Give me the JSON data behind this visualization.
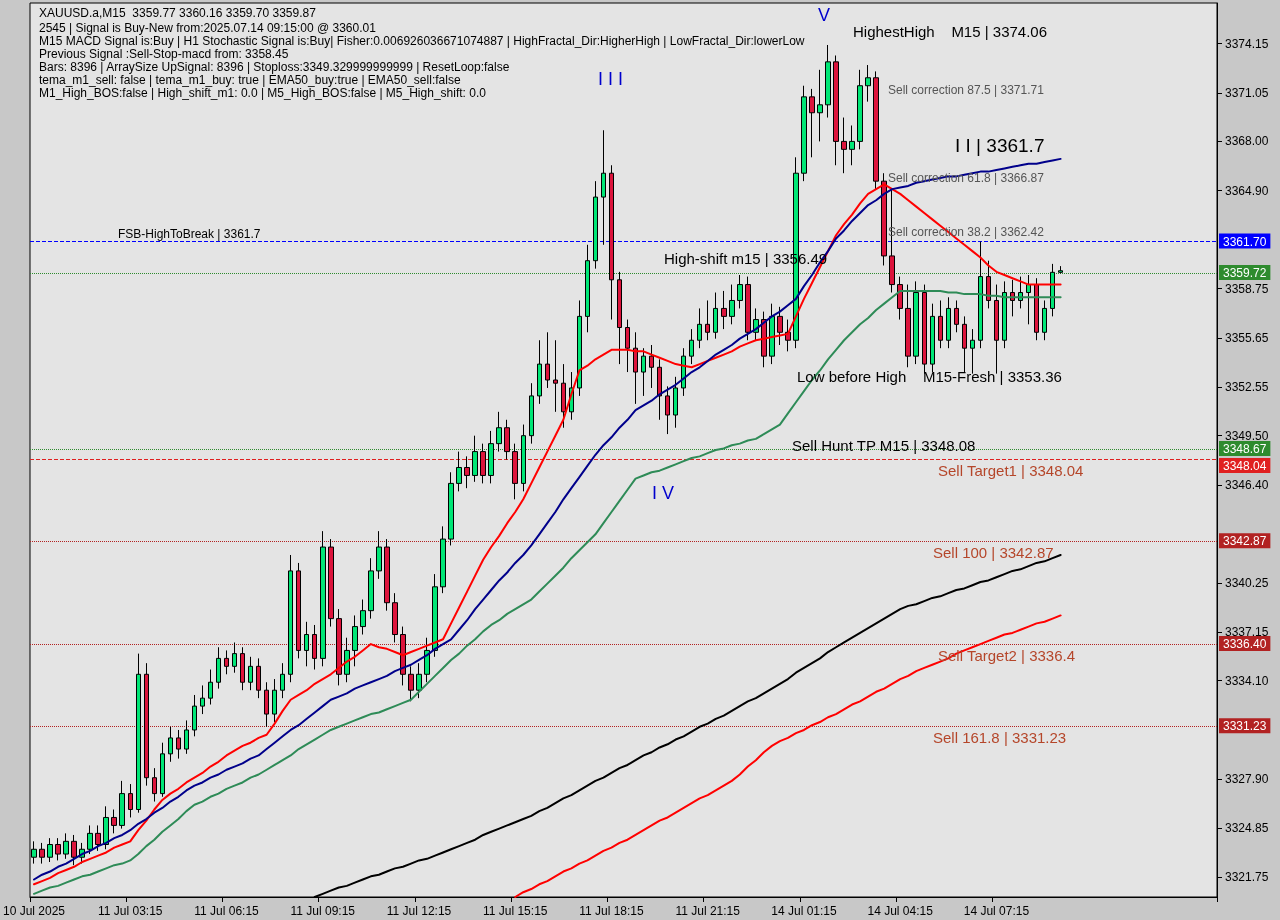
{
  "chart_data": {
    "type": "candlestick",
    "title": "XAUUSD.a,M15  3359.77 3360.16 3359.70 3359.87",
    "subtitle": "2545 | Signal is Buy-New from:2025.07.14 09:15:00 @ 3360.01\nM15 MACD Signal is:Buy | H1 Stochastic Signal is:Buy| Fisher:0.006926036671074887 | HighFractal_Dir:HigherHigh | LowFractal_Dir:lowerLow\nPrevious Signal :Sell-Stop-macd from: 3358.45\nBars: 8396 | ArraySize UpSignal: 8396 | Stoploss:3349.329999999999 | ResetLoop:false\ntema_m1_sell: false | tema_m1_buy: true | EMA50_buy:true | EMA50_sell:false\nM1_High_BOS:false | High_shift_m1: 0.0 | M5_High_BOS:false | M5_High_shift: 0.0",
    "categories": [
      "10 Jul 2025",
      null,
      null,
      null,
      null,
      null,
      null,
      null,
      null,
      null,
      null,
      null,
      "11 Jul 03:15",
      null,
      null,
      null,
      null,
      null,
      null,
      null,
      null,
      null,
      null,
      null,
      "11 Jul 06:15",
      null,
      null,
      null,
      null,
      null,
      null,
      null,
      null,
      null,
      null,
      null,
      "11 Jul 09:15",
      null,
      null,
      null,
      null,
      null,
      null,
      null,
      null,
      null,
      null,
      null,
      "11 Jul 12:15",
      null,
      null,
      null,
      null,
      null,
      null,
      null,
      null,
      null,
      null,
      null,
      "11 Jul 15:15",
      null,
      null,
      null,
      null,
      null,
      null,
      null,
      null,
      null,
      null,
      null,
      "11 Jul 18:15",
      null,
      null,
      null,
      null,
      null,
      null,
      null,
      null,
      null,
      null,
      null,
      "11 Jul 21:15",
      null,
      null,
      null,
      null,
      null,
      null,
      null,
      null,
      null,
      null,
      null,
      "14 Jul 01:15",
      null,
      null,
      null,
      null,
      null,
      null,
      null,
      null,
      null,
      null,
      null,
      "14 Jul 04:15",
      null,
      null,
      null,
      null,
      null,
      null,
      null,
      null,
      null,
      null,
      null,
      "14 Jul 07:15",
      null,
      null,
      null,
      null,
      null,
      null,
      null,
      null
    ],
    "ohlc": [
      [
        3323.0,
        3324.0,
        3322.6,
        3323.5
      ],
      [
        3323.5,
        3323.9,
        3322.6,
        3323.0
      ],
      [
        3323.0,
        3324.2,
        3322.7,
        3323.8
      ],
      [
        3323.8,
        3324.2,
        3322.8,
        3323.2
      ],
      [
        3323.2,
        3324.5,
        3322.9,
        3324.0
      ],
      [
        3324.0,
        3324.4,
        3322.5,
        3323.0
      ],
      [
        3323.0,
        3323.9,
        3322.6,
        3323.5
      ],
      [
        3323.5,
        3325.0,
        3323.2,
        3324.5
      ],
      [
        3324.5,
        3325.0,
        3323.4,
        3323.8
      ],
      [
        3323.8,
        3326.2,
        3323.5,
        3325.5
      ],
      [
        3325.5,
        3326.0,
        3324.5,
        3325.0
      ],
      [
        3325.0,
        3327.8,
        3324.8,
        3327.0
      ],
      [
        3327.0,
        3327.6,
        3325.5,
        3326.0
      ],
      [
        3326.0,
        3335.8,
        3325.8,
        3334.5
      ],
      [
        3334.5,
        3335.2,
        3327.5,
        3328.0
      ],
      [
        3328.0,
        3328.6,
        3326.5,
        3327.0
      ],
      [
        3327.0,
        3330.2,
        3326.8,
        3329.5
      ],
      [
        3329.5,
        3331.2,
        3329.0,
        3330.5
      ],
      [
        3330.5,
        3331.0,
        3329.2,
        3329.8
      ],
      [
        3329.8,
        3331.6,
        3329.5,
        3331.0
      ],
      [
        3331.0,
        3333.2,
        3330.6,
        3332.5
      ],
      [
        3332.5,
        3333.8,
        3332.0,
        3333.0
      ],
      [
        3333.0,
        3334.8,
        3332.6,
        3334.0
      ],
      [
        3334.0,
        3336.2,
        3333.6,
        3335.5
      ],
      [
        3335.5,
        3336.0,
        3334.5,
        3335.0
      ],
      [
        3335.0,
        3336.5,
        3334.6,
        3335.8
      ],
      [
        3335.8,
        3336.2,
        3333.5,
        3334.0
      ],
      [
        3334.0,
        3335.6,
        3333.5,
        3335.0
      ],
      [
        3335.0,
        3335.5,
        3333.0,
        3333.5
      ],
      [
        3333.5,
        3334.0,
        3331.2,
        3332.0
      ],
      [
        3332.0,
        3334.2,
        3331.5,
        3333.5
      ],
      [
        3333.5,
        3335.2,
        3333.0,
        3334.5
      ],
      [
        3334.5,
        3342.0,
        3334.0,
        3341.0
      ],
      [
        3341.0,
        3341.5,
        3335.5,
        3336.0
      ],
      [
        3336.0,
        3337.8,
        3335.0,
        3337.0
      ],
      [
        3337.0,
        3337.6,
        3334.8,
        3335.5
      ],
      [
        3335.5,
        3343.5,
        3335.0,
        3342.5
      ],
      [
        3342.5,
        3343.0,
        3337.5,
        3338.0
      ],
      [
        3338.0,
        3338.6,
        3333.8,
        3334.5
      ],
      [
        3334.5,
        3336.8,
        3334.0,
        3336.0
      ],
      [
        3336.0,
        3338.2,
        3335.0,
        3337.5
      ],
      [
        3337.5,
        3339.2,
        3337.0,
        3338.5
      ],
      [
        3338.5,
        3341.8,
        3338.0,
        3341.0
      ],
      [
        3341.0,
        3343.5,
        3340.5,
        3342.5
      ],
      [
        3342.5,
        3343.0,
        3338.5,
        3339.0
      ],
      [
        3339.0,
        3339.6,
        3336.5,
        3337.0
      ],
      [
        3337.0,
        3337.5,
        3333.8,
        3334.5
      ],
      [
        3334.5,
        3335.0,
        3332.8,
        3333.5
      ],
      [
        3333.5,
        3335.2,
        3333.0,
        3334.5
      ],
      [
        3334.5,
        3336.8,
        3334.0,
        3336.0
      ],
      [
        3336.0,
        3340.8,
        3335.6,
        3340.0
      ],
      [
        3340.0,
        3343.8,
        3339.6,
        3343.0
      ],
      [
        3343.0,
        3347.2,
        3342.6,
        3346.5
      ],
      [
        3346.5,
        3348.5,
        3346.0,
        3347.5
      ],
      [
        3347.5,
        3348.2,
        3346.2,
        3347.0
      ],
      [
        3347.0,
        3349.5,
        3346.6,
        3348.5
      ],
      [
        3348.5,
        3349.0,
        3346.5,
        3347.0
      ],
      [
        3347.0,
        3349.8,
        3346.5,
        3349.0
      ],
      [
        3349.0,
        3351.0,
        3348.5,
        3350.0
      ],
      [
        3350.0,
        3350.5,
        3348.0,
        3348.5
      ],
      [
        3348.5,
        3349.0,
        3345.5,
        3346.5
      ],
      [
        3346.5,
        3350.2,
        3346.0,
        3349.5
      ],
      [
        3349.5,
        3352.8,
        3349.0,
        3352.0
      ],
      [
        3352.0,
        3355.5,
        3351.5,
        3354.0
      ],
      [
        3354.0,
        3356.0,
        3352.5,
        3353.0
      ],
      [
        3353.0,
        3355.5,
        3351.0,
        3352.8
      ],
      [
        3352.8,
        3354.0,
        3350.0,
        3351.0
      ],
      [
        3351.0,
        3353.5,
        3350.5,
        3352.5
      ],
      [
        3352.5,
        3358.0,
        3352.0,
        3357.0
      ],
      [
        3357.0,
        3361.5,
        3356.0,
        3360.5
      ],
      [
        3360.5,
        3365.5,
        3360.0,
        3364.5
      ],
      [
        3364.5,
        3368.7,
        3361.5,
        3366.0
      ],
      [
        3366.0,
        3366.5,
        3356.8,
        3359.3
      ],
      [
        3359.3,
        3359.8,
        3354.0,
        3356.3
      ],
      [
        3356.3,
        3356.8,
        3353.5,
        3355.0
      ],
      [
        3355.0,
        3356.0,
        3351.5,
        3353.5
      ],
      [
        3353.5,
        3355.0,
        3352.0,
        3354.5
      ],
      [
        3354.5,
        3355.2,
        3352.5,
        3353.8
      ],
      [
        3353.8,
        3354.3,
        3350.5,
        3352.0
      ],
      [
        3352.0,
        3352.6,
        3349.6,
        3350.8
      ],
      [
        3350.8,
        3353.2,
        3350.0,
        3352.5
      ],
      [
        3352.5,
        3355.0,
        3352.0,
        3354.5
      ],
      [
        3354.5,
        3356.2,
        3354.0,
        3355.5
      ],
      [
        3355.5,
        3357.5,
        3355.0,
        3356.5
      ],
      [
        3356.5,
        3358.0,
        3355.5,
        3356.0
      ],
      [
        3356.0,
        3358.5,
        3355.6,
        3357.5
      ],
      [
        3357.5,
        3358.6,
        3356.2,
        3357.0
      ],
      [
        3357.0,
        3359.0,
        3356.5,
        3358.0
      ],
      [
        3358.0,
        3359.6,
        3357.5,
        3359.0
      ],
      [
        3359.0,
        3359.5,
        3355.5,
        3356.0
      ],
      [
        3356.0,
        3357.5,
        3355.5,
        3356.8
      ],
      [
        3356.8,
        3357.3,
        3353.8,
        3354.5
      ],
      [
        3354.5,
        3357.8,
        3354.0,
        3357.0
      ],
      [
        3357.0,
        3357.6,
        3355.2,
        3356.0
      ],
      [
        3356.0,
        3356.8,
        3354.8,
        3355.5
      ],
      [
        3355.5,
        3367.0,
        3355.0,
        3366.0
      ],
      [
        3366.0,
        3371.5,
        3365.5,
        3370.8
      ],
      [
        3370.8,
        3371.3,
        3367.0,
        3369.8
      ],
      [
        3369.8,
        3372.5,
        3368.0,
        3370.3
      ],
      [
        3370.3,
        3374.06,
        3369.5,
        3373.0
      ],
      [
        3373.0,
        3373.4,
        3366.5,
        3368.0
      ],
      [
        3368.0,
        3369.5,
        3366.0,
        3367.5
      ],
      [
        3367.5,
        3369.0,
        3366.5,
        3368.0
      ],
      [
        3368.0,
        3372.5,
        3367.5,
        3371.5
      ],
      [
        3371.5,
        3372.8,
        3370.5,
        3372.0
      ],
      [
        3372.0,
        3372.4,
        3365.0,
        3365.5
      ],
      [
        3365.5,
        3366.0,
        3360.2,
        3360.8
      ],
      [
        3360.8,
        3365.0,
        3358.5,
        3359.0
      ],
      [
        3359.0,
        3359.5,
        3356.8,
        3357.5
      ],
      [
        3357.5,
        3359.0,
        3353.8,
        3354.5
      ],
      [
        3354.5,
        3359.2,
        3354.0,
        3358.5
      ],
      [
        3358.5,
        3359.0,
        3353.4,
        3354.0
      ],
      [
        3354.0,
        3357.8,
        3353.5,
        3357.0
      ],
      [
        3357.0,
        3358.0,
        3355.0,
        3355.5
      ],
      [
        3355.5,
        3358.2,
        3355.0,
        3357.5
      ],
      [
        3357.5,
        3358.0,
        3356.0,
        3356.5
      ],
      [
        3356.5,
        3357.0,
        3353.5,
        3355.0
      ],
      [
        3355.0,
        3356.2,
        3353.4,
        3355.5
      ],
      [
        3355.5,
        3361.7,
        3355.0,
        3359.5
      ],
      [
        3359.5,
        3360.5,
        3357.5,
        3358.0
      ],
      [
        3358.0,
        3359.0,
        3353.4,
        3355.5
      ],
      [
        3355.5,
        3359.2,
        3355.0,
        3358.5
      ],
      [
        3358.5,
        3359.3,
        3357.0,
        3358.0
      ],
      [
        3358.0,
        3359.5,
        3357.5,
        3358.5
      ],
      [
        3358.5,
        3359.6,
        3356.5,
        3359.0
      ],
      [
        3359.0,
        3359.4,
        3355.5,
        3356.0
      ],
      [
        3356.0,
        3358.0,
        3355.5,
        3357.5
      ],
      [
        3357.5,
        3360.3,
        3357.0,
        3359.77
      ],
      [
        3359.77,
        3360.16,
        3359.7,
        3359.87
      ]
    ],
    "series": [
      {
        "type": "line",
        "color": "#ff0000",
        "values": [
          3321.3,
          3321.5,
          3321.7,
          3322.0,
          3322.2,
          3322.4,
          3322.7,
          3322.9,
          3323.1,
          3323.3,
          3323.6,
          3323.8,
          3324.0,
          3324.7,
          3325.3,
          3326.0,
          3326.6,
          3327.0,
          3327.3,
          3327.7,
          3328.0,
          3328.3,
          3328.7,
          3329.0,
          3329.4,
          3329.7,
          3330.0,
          3330.2,
          3330.5,
          3330.7,
          3331.4,
          3332.2,
          3332.9,
          3333.2,
          3333.5,
          3333.9,
          3334.2,
          3334.5,
          3334.9,
          3335.3,
          3335.6,
          3336.0,
          3336.4,
          3336.2,
          3336.1,
          3335.9,
          3335.7,
          3335.9,
          3336.1,
          3336.3,
          3336.5,
          3336.7,
          3337.7,
          3338.7,
          3339.7,
          3340.7,
          3341.7,
          3342.5,
          3343.2,
          3344.0,
          3344.7,
          3345.5,
          3346.5,
          3347.5,
          3348.5,
          3349.5,
          3350.5,
          3352.1,
          3353.6,
          3353.9,
          3354.3,
          3354.6,
          3354.9,
          3354.9,
          3354.9,
          3354.8,
          3354.8,
          3354.6,
          3354.4,
          3354.2,
          3354.0,
          3353.9,
          3353.8,
          3354.0,
          3354.2,
          3354.4,
          3354.6,
          3354.8,
          3355.1,
          3355.3,
          3355.5,
          3355.6,
          3355.7,
          3355.8,
          3355.9,
          3357.0,
          3358.1,
          3359.1,
          3360.1,
          3361.1,
          3362.1,
          3362.8,
          3363.4,
          3364.1,
          3364.7,
          3365.0,
          3365.3,
          3365.0,
          3364.7,
          3364.3,
          3363.9,
          3363.5,
          3363.1,
          3362.7,
          3362.3,
          3361.9,
          3361.5,
          3361.1,
          3360.7,
          3360.2,
          3359.8,
          3359.6,
          3359.4,
          3359.2,
          3359.0,
          3359.0,
          3359.0,
          3359.0,
          3359.0
        ]
      },
      {
        "type": "line",
        "color": "#00008b",
        "values": [
          3321.6,
          3321.9,
          3322.1,
          3322.4,
          3322.6,
          3322.9,
          3323.2,
          3323.4,
          3323.7,
          3323.9,
          3324.2,
          3324.4,
          3324.7,
          3325.1,
          3325.4,
          3325.8,
          3326.1,
          3326.5,
          3326.8,
          3327.2,
          3327.5,
          3327.7,
          3328.0,
          3328.2,
          3328.5,
          3328.7,
          3328.9,
          3329.2,
          3329.4,
          3329.8,
          3330.2,
          3330.6,
          3331.0,
          3331.3,
          3331.7,
          3332.1,
          3332.5,
          3332.9,
          3333.1,
          3333.3,
          3333.6,
          3333.8,
          3334.0,
          3334.2,
          3334.4,
          3334.7,
          3334.9,
          3335.1,
          3335.4,
          3335.7,
          3336.1,
          3336.4,
          3336.7,
          3337.3,
          3337.9,
          3338.6,
          3339.2,
          3339.8,
          3340.4,
          3340.9,
          3341.5,
          3342.0,
          3342.6,
          3343.3,
          3344.0,
          3344.7,
          3345.5,
          3346.2,
          3346.9,
          3347.6,
          3348.3,
          3348.9,
          3349.4,
          3350.0,
          3350.5,
          3351.1,
          3351.4,
          3351.7,
          3352.1,
          3352.4,
          3352.7,
          3353.1,
          3353.5,
          3353.8,
          3354.2,
          3354.6,
          3354.9,
          3355.2,
          3355.6,
          3355.9,
          3356.2,
          3356.6,
          3357.0,
          3357.3,
          3357.7,
          3358.1,
          3358.9,
          3359.6,
          3360.4,
          3361.1,
          3361.9,
          3362.4,
          3363.0,
          3363.5,
          3364.0,
          3364.3,
          3364.7,
          3365.0,
          3365.1,
          3365.2,
          3365.4,
          3365.5,
          3365.6,
          3365.7,
          3365.8,
          3365.8,
          3365.9,
          3366.0,
          3366.1,
          3366.1,
          3366.2,
          3366.3,
          3366.4,
          3366.5,
          3366.6,
          3366.6,
          3366.7,
          3366.8,
          3366.9
        ]
      },
      {
        "type": "line",
        "color": "#2e8b57",
        "values": [
          3320.7,
          3320.9,
          3321.1,
          3321.2,
          3321.4,
          3321.6,
          3321.8,
          3321.9,
          3322.1,
          3322.3,
          3322.5,
          3322.6,
          3322.8,
          3323.2,
          3323.7,
          3324.1,
          3324.6,
          3325.0,
          3325.4,
          3325.9,
          3326.3,
          3326.5,
          3326.8,
          3327.0,
          3327.3,
          3327.5,
          3327.7,
          3328.0,
          3328.2,
          3328.5,
          3328.8,
          3329.1,
          3329.4,
          3329.8,
          3330.1,
          3330.4,
          3330.7,
          3331.0,
          3331.2,
          3331.4,
          3331.6,
          3331.8,
          3332.0,
          3332.1,
          3332.3,
          3332.5,
          3332.7,
          3332.9,
          3333.4,
          3333.9,
          3334.4,
          3334.9,
          3335.4,
          3335.8,
          3336.3,
          3336.7,
          3337.2,
          3337.6,
          3337.9,
          3338.3,
          3338.6,
          3338.9,
          3339.2,
          3339.7,
          3340.2,
          3340.7,
          3341.2,
          3341.8,
          3342.3,
          3342.8,
          3343.3,
          3344.0,
          3344.7,
          3345.4,
          3346.1,
          3346.8,
          3347.0,
          3347.2,
          3347.3,
          3347.5,
          3347.7,
          3347.9,
          3348.1,
          3348.2,
          3348.4,
          3348.6,
          3348.7,
          3348.9,
          3349.0,
          3349.2,
          3349.3,
          3349.6,
          3349.9,
          3350.2,
          3350.9,
          3351.6,
          3352.3,
          3353.0,
          3353.6,
          3354.3,
          3354.9,
          3355.5,
          3356.0,
          3356.5,
          3356.9,
          3357.4,
          3357.8,
          3358.2,
          3358.6,
          3358.6,
          3358.6,
          3358.6,
          3358.6,
          3358.6,
          3358.5,
          3358.5,
          3358.4,
          3358.4,
          3358.4,
          3358.3,
          3358.3,
          3358.2,
          3358.2,
          3358.2,
          3358.2,
          3358.2,
          3358.2,
          3358.2,
          3358.2
        ]
      },
      {
        "type": "line",
        "color": "#000000",
        "values": [
          null,
          null,
          null,
          null,
          null,
          null,
          null,
          null,
          null,
          null,
          null,
          null,
          null,
          null,
          null,
          null,
          null,
          null,
          null,
          null,
          null,
          null,
          null,
          null,
          null,
          null,
          null,
          null,
          null,
          null,
          null,
          null,
          null,
          null,
          null,
          3320.5,
          3320.7,
          3320.9,
          3321.1,
          3321.2,
          3321.4,
          3321.6,
          3321.8,
          3321.9,
          3322.1,
          3322.3,
          3322.4,
          3322.6,
          3322.8,
          3322.9,
          3323.1,
          3323.3,
          3323.5,
          3323.7,
          3323.9,
          3324.1,
          3324.4,
          3324.6,
          3324.8,
          3325.0,
          3325.2,
          3325.4,
          3325.6,
          3325.9,
          3326.1,
          3326.4,
          3326.7,
          3326.9,
          3327.2,
          3327.5,
          3327.8,
          3328.0,
          3328.3,
          3328.6,
          3328.8,
          3329.1,
          3329.4,
          3329.6,
          3329.9,
          3330.1,
          3330.4,
          3330.6,
          3330.9,
          3331.2,
          3331.4,
          3331.7,
          3331.9,
          3332.2,
          3332.5,
          3332.8,
          3333.0,
          3333.3,
          3333.6,
          3333.9,
          3334.2,
          3334.6,
          3334.9,
          3335.2,
          3335.5,
          3335.9,
          3336.2,
          3336.5,
          3336.8,
          3337.1,
          3337.4,
          3337.7,
          3338.0,
          3338.3,
          3338.6,
          3338.8,
          3338.9,
          3339.1,
          3339.3,
          3339.4,
          3339.6,
          3339.8,
          3339.9,
          3340.1,
          3340.3,
          3340.4,
          3340.6,
          3340.8,
          3341.0,
          3341.1,
          3341.3,
          3341.5,
          3341.6,
          3341.8,
          3342.0
        ]
      },
      {
        "type": "line",
        "color": "#ff0000",
        "values": [
          null,
          null,
          null,
          null,
          null,
          null,
          null,
          null,
          null,
          null,
          null,
          null,
          null,
          null,
          null,
          null,
          null,
          null,
          null,
          null,
          null,
          null,
          null,
          null,
          null,
          null,
          null,
          null,
          null,
          null,
          null,
          null,
          null,
          null,
          null,
          null,
          null,
          null,
          null,
          null,
          null,
          null,
          null,
          null,
          null,
          null,
          null,
          null,
          null,
          null,
          null,
          null,
          null,
          null,
          null,
          null,
          null,
          null,
          null,
          null,
          3320.5,
          3320.8,
          3321.0,
          3321.3,
          3321.5,
          3321.8,
          3322.1,
          3322.3,
          3322.6,
          3322.8,
          3323.1,
          3323.4,
          3323.6,
          3323.9,
          3324.1,
          3324.4,
          3324.7,
          3325.0,
          3325.3,
          3325.5,
          3325.8,
          3326.1,
          3326.4,
          3326.7,
          3326.9,
          3327.2,
          3327.5,
          3327.8,
          3328.2,
          3328.7,
          3329.1,
          3329.6,
          3330.0,
          3330.3,
          3330.5,
          3330.8,
          3331.0,
          3331.3,
          3331.5,
          3331.8,
          3332.0,
          3332.3,
          3332.6,
          3332.8,
          3333.1,
          3333.4,
          3333.6,
          3333.9,
          3334.2,
          3334.4,
          3334.7,
          3334.9,
          3335.1,
          3335.3,
          3335.5,
          3335.8,
          3336.0,
          3336.2,
          3336.4,
          3336.6,
          3336.8,
          3337.0,
          3337.1,
          3337.3,
          3337.5,
          3337.7,
          3337.8,
          3338.0,
          3338.2
        ]
      }
    ],
    "ylim": [
      3320.5,
      3376.7
    ],
    "yticks": [
      3321.75,
      3324.85,
      {
        "value": 3327.9,
        "label": "3327.90"
      },
      {
        "value": 3334.1,
        "label": "3334.10"
      },
      3337.15,
      3340.25,
      {
        "value": 3346.4,
        "label": "3346.40"
      },
      {
        "value": 3349.5,
        "label": "3349.50"
      },
      3352.55,
      3355.65,
      3358.75,
      {
        "value": 3364.9,
        "label": "3364.90"
      },
      {
        "value": 3368,
        "label": "3368.00"
      },
      3371.05,
      3374.15
    ],
    "ref_lines": [
      {
        "axis": "y",
        "value": 3361.7,
        "label": "FSB-HighToBreak | 3361.7",
        "color": "#0000ff",
        "line_style": "dashed"
      },
      {
        "axis": "y",
        "value": 3359.72,
        "color": "#2e8b2e",
        "line_style": "dotted"
      },
      {
        "axis": "y",
        "value": 3348.67,
        "color": "#2e8b2e",
        "line_style": "dotted"
      },
      {
        "axis": "y",
        "value": 3348.04,
        "label": "Sell Target1 | 3348.04",
        "color": "#e02020",
        "line_style": "dashed"
      },
      {
        "axis": "y",
        "value": 3342.87,
        "label": "Sell 100 | 3342.87",
        "color": "#b22222",
        "line_style": "dotted"
      },
      {
        "axis": "y",
        "value": 3336.4,
        "label": "Sell Target2 | 3336.4",
        "color": "#b22222",
        "line_style": "dotted"
      },
      {
        "axis": "y",
        "value": 3331.23,
        "label": "Sell 161.8 | 3331.23",
        "color": "#b22222",
        "line_style": "dotted"
      }
    ],
    "annotations": [
      "I I I",
      "V",
      "HighestHigh    M15 | 3374.06",
      "Sell correction 87.5 | 3371.71",
      "I I | 3361.7",
      "Sell correction 61.8 | 3366.87",
      "Sell correction 38.2 | 3362.42",
      "High-shift m15 | 3356.49",
      "Low before High    M15-Fresh | 3353.36",
      "Sell Hunt TP M15 | 3348.08",
      "I V",
      "3361.70",
      "3359.72",
      "3348.67",
      "3348.04",
      "3342.87",
      "3336.40",
      "3331.23"
    ],
    "marker": "none",
    "line_style": "solid",
    "grid": false
  }
}
